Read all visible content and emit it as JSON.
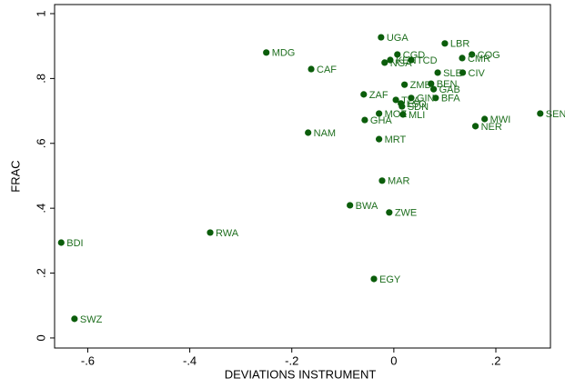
{
  "chart_data": {
    "type": "scatter",
    "x_label": "DEVIATIONS INSTRUMENT",
    "y_label": "FRAC",
    "color": "#0b5d0b",
    "xlim": [
      -0.665,
      0.307
    ],
    "ylim": [
      -0.031,
      1.028
    ],
    "xticks": [
      {
        "value": -0.6,
        "label": "-.6"
      },
      {
        "value": -0.4,
        "label": "-.4"
      },
      {
        "value": -0.2,
        "label": "-.2"
      },
      0,
      {
        "value": 0.2,
        "label": ".2"
      }
    ],
    "yticks": [
      0,
      {
        "value": 0.2,
        "label": ".2"
      },
      {
        "value": 0.4,
        "label": ".4"
      },
      {
        "value": 0.6,
        "label": ".6"
      },
      {
        "value": 0.8,
        "label": ".8"
      },
      1
    ],
    "labels": [
      "BDI",
      "SWZ",
      "RWA",
      "MDG",
      "CAF",
      "NAM",
      "BWA",
      "ZAF",
      "GHA",
      "MOZ",
      "MRT",
      "MAR",
      "EGY",
      "ZWE",
      "UGA",
      "NGA",
      "KEN",
      "CGD",
      "TCD",
      "LBR",
      "COG",
      "CMR",
      "SLE",
      "CIV",
      "ZMB",
      "BEN",
      "GAB",
      "TZA",
      "GIN",
      "BFA",
      "LSO",
      "SDN",
      "MLI",
      "MWI",
      "NER",
      "SEN"
    ],
    "x": [
      -0.652,
      -0.626,
      -0.36,
      -0.25,
      -0.162,
      -0.168,
      -0.086,
      -0.059,
      -0.057,
      -0.029,
      -0.029,
      -0.023,
      -0.039,
      -0.009,
      -0.025,
      -0.018,
      -0.007,
      0.007,
      0.034,
      0.1,
      0.153,
      0.134,
      0.086,
      0.135,
      0.021,
      0.073,
      0.078,
      0.004,
      0.034,
      0.082,
      0.014,
      0.016,
      0.018,
      0.178,
      0.16,
      0.287
    ],
    "values": [
      0.294,
      0.059,
      0.325,
      0.88,
      0.829,
      0.633,
      0.409,
      0.751,
      0.672,
      0.692,
      0.613,
      0.485,
      0.182,
      0.387,
      0.927,
      0.849,
      0.857,
      0.874,
      0.857,
      0.908,
      0.874,
      0.863,
      0.818,
      0.818,
      0.781,
      0.784,
      0.767,
      0.734,
      0.74,
      0.74,
      0.723,
      0.714,
      0.689,
      0.675,
      0.653,
      0.692
    ]
  }
}
